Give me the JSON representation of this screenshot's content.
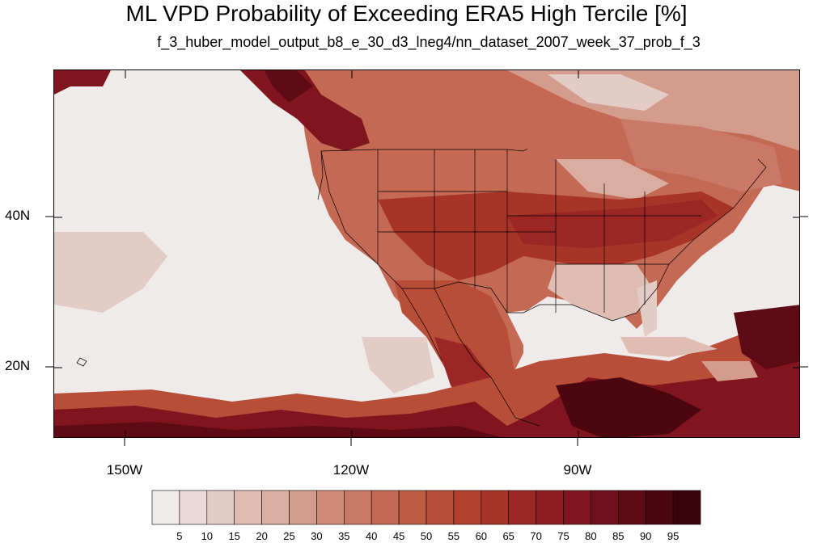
{
  "title": "ML VPD Probability of Exceeding ERA5 High Tercile [%]",
  "subtitle": "f_3_huber_model_output_b8_e_30_d3_lneg4/nn_dataset_2007_week_37_prob_f_3",
  "map": {
    "type": "filled-contour-map",
    "region": "North America and eastern Pacific",
    "lon_range": [
      -160,
      -62
    ],
    "lat_range": [
      10,
      60
    ],
    "x_tick_labels": [
      "150W",
      "120W",
      "90W"
    ],
    "y_tick_labels": [
      "40N",
      "20N"
    ]
  },
  "colorbar": {
    "labels": [
      "5",
      "10",
      "15",
      "20",
      "25",
      "30",
      "35",
      "40",
      "45",
      "50",
      "55",
      "60",
      "65",
      "70",
      "75",
      "80",
      "85",
      "90",
      "95"
    ],
    "colors": [
      "#f0ebeb",
      "#eadbd8",
      "#e4ccc6",
      "#dfbdb3",
      "#d9ada0",
      "#d49c8c",
      "#cf8a78",
      "#c97966",
      "#c46a54",
      "#be5c44",
      "#b84e38",
      "#b1402e",
      "#a83428",
      "#9c2624",
      "#8e1c22",
      "#801520",
      "#70101c",
      "#5e0b16",
      "#4c0610",
      "#3a030a"
    ]
  }
}
